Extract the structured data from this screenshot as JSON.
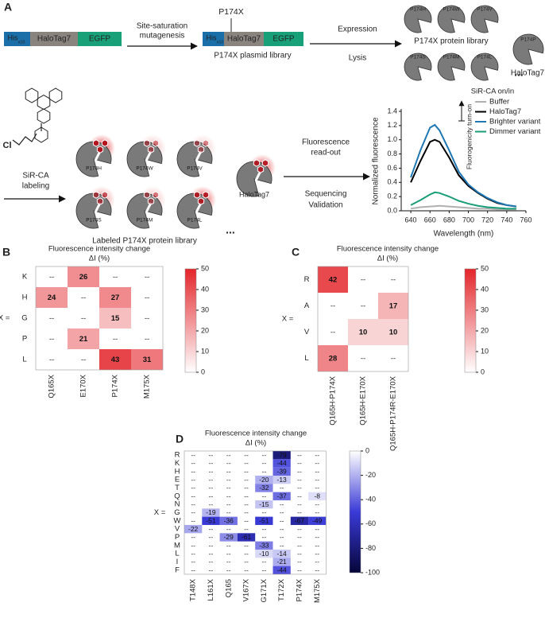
{
  "panel_a": {
    "label": "A",
    "construct": {
      "his": "His",
      "his_sub": "x10",
      "halotag": "HaloTag7",
      "egfp": "EGFP"
    },
    "step1": [
      "Site-saturation",
      "mutagenesis"
    ],
    "mutant_label": "P174X",
    "plasmid_library": "P174X plasmid library",
    "step2": [
      "Expression",
      "Lysis"
    ],
    "variants": [
      "P174H",
      "P174W",
      "P174V",
      "P174S",
      "P174M",
      "P174L"
    ],
    "ellipsis": "...",
    "protein_library": "P174X protein library",
    "wildtype_site": "P174P",
    "wildtype": "HaloTag7",
    "chlorine": "Cl",
    "step3": [
      "SiR-CA",
      "labeling"
    ],
    "labeled_library": "Labeled P174X protein library",
    "step4": [
      "Fluorescence",
      "read-out",
      "Sequencing",
      "Validation"
    ]
  },
  "chart_data": [
    {
      "type": "line",
      "xlabel": "Wavelength (nm)",
      "ylabel": "Normalized fluorescence",
      "legend_title": "SiR-CA on/in",
      "annotation": "Fluorogenicity turn-on",
      "x": [
        640,
        650,
        660,
        665,
        670,
        680,
        690,
        700,
        710,
        720,
        730,
        740,
        750
      ],
      "series": [
        {
          "name": "Buffer",
          "color": "#b0b0b0",
          "values": [
            0.03,
            0.05,
            0.06,
            0.065,
            0.07,
            0.06,
            0.05,
            0.04,
            0.03,
            0.03,
            0.02,
            0.02,
            0.02
          ]
        },
        {
          "name": "HaloTag7",
          "color": "#000000",
          "values": [
            0.4,
            0.7,
            0.97,
            1.0,
            0.97,
            0.75,
            0.5,
            0.35,
            0.25,
            0.17,
            0.11,
            0.08,
            0.06
          ]
        },
        {
          "name": "Brighter variant",
          "color": "#1f78b4",
          "values": [
            0.47,
            0.85,
            1.17,
            1.21,
            1.13,
            0.85,
            0.55,
            0.37,
            0.26,
            0.18,
            0.12,
            0.08,
            0.06
          ]
        },
        {
          "name": "Dimmer variant",
          "color": "#1a9e77",
          "values": [
            0.08,
            0.15,
            0.23,
            0.26,
            0.25,
            0.2,
            0.14,
            0.1,
            0.07,
            0.05,
            0.04,
            0.03,
            0.03
          ]
        }
      ],
      "xlim": [
        630,
        760
      ],
      "xticks": [
        640,
        660,
        680,
        700,
        720,
        740,
        760
      ],
      "ylim": [
        0,
        1.4
      ],
      "yticks": [
        {
          "value": 0,
          "label": "0.0"
        },
        0.2,
        0.4,
        0.6,
        0.8,
        {
          "value": 1,
          "label": "1.0"
        },
        1.2,
        1.4
      ]
    },
    {
      "type": "heatmap",
      "panel_label": "B",
      "title": "Fluorescence intensity change",
      "subtitle": "ΔI (%)",
      "row_axis_label": "X =",
      "empty_label": "--",
      "rows": [
        "K",
        "H",
        "G",
        "P",
        "L"
      ],
      "columns": [
        "Q165X",
        "E170X",
        "P174X",
        "M175X"
      ],
      "values": [
        [
          null,
          26,
          null,
          null
        ],
        [
          24,
          null,
          27,
          null
        ],
        [
          null,
          null,
          15,
          null
        ],
        [
          null,
          21,
          null,
          null
        ],
        [
          null,
          null,
          43,
          31
        ]
      ],
      "clim": [
        0,
        50
      ],
      "colorbar_ticks": [
        0,
        10,
        20,
        30,
        40,
        50
      ],
      "colors": [
        "#ffffff",
        "#e3262b"
      ]
    },
    {
      "type": "heatmap",
      "panel_label": "C",
      "title": "Fluorescence intensity change",
      "subtitle": "ΔI (%)",
      "row_axis_label": "X =",
      "empty_label": "--",
      "rows": [
        "R",
        "A",
        "V",
        "L"
      ],
      "columns": [
        "Q165H-P174X",
        "Q165H-E170X",
        "Q165H-P174R-E170X"
      ],
      "values": [
        [
          42,
          null,
          null
        ],
        [
          null,
          null,
          17
        ],
        [
          null,
          10,
          10
        ],
        [
          28,
          null,
          null
        ]
      ],
      "clim": [
        0,
        50
      ],
      "colorbar_ticks": [
        0,
        10,
        20,
        30,
        40,
        50
      ],
      "colors": [
        "#ffffff",
        "#e3262b"
      ]
    },
    {
      "type": "heatmap",
      "panel_label": "D",
      "title": "Fluorescence intensity change",
      "subtitle": "ΔI (%)",
      "row_axis_label": "X =",
      "empty_label": "--",
      "rows": [
        "R",
        "K",
        "H",
        "E",
        "T",
        "Q",
        "N",
        "G",
        "W",
        "V",
        "P",
        "M",
        "L",
        "I",
        "F"
      ],
      "columns": [
        "T148X",
        "L161X",
        "Q165",
        "V167X",
        "G171X",
        "T172X",
        "P174X",
        "M175X"
      ],
      "values": [
        [
          null,
          null,
          null,
          null,
          null,
          -79,
          null,
          null
        ],
        [
          null,
          null,
          null,
          null,
          null,
          -44,
          null,
          null
        ],
        [
          null,
          null,
          null,
          null,
          null,
          -39,
          null,
          null
        ],
        [
          null,
          null,
          null,
          null,
          -20,
          -13,
          null,
          null
        ],
        [
          null,
          null,
          null,
          null,
          -32,
          null,
          null,
          null
        ],
        [
          null,
          null,
          null,
          null,
          null,
          -37,
          null,
          -8
        ],
        [
          null,
          null,
          null,
          null,
          -15,
          null,
          null,
          null
        ],
        [
          null,
          -19,
          null,
          null,
          null,
          null,
          null,
          null
        ],
        [
          null,
          -51,
          -36,
          null,
          -51,
          null,
          -67,
          -49
        ],
        [
          -22,
          null,
          null,
          null,
          null,
          null,
          null,
          null
        ],
        [
          null,
          null,
          -29,
          -61,
          null,
          null,
          null,
          null
        ],
        [
          null,
          null,
          null,
          null,
          -33,
          null,
          null,
          null
        ],
        [
          null,
          null,
          null,
          null,
          -10,
          -14,
          null,
          null
        ],
        [
          null,
          null,
          null,
          null,
          null,
          -21,
          null,
          null
        ],
        [
          null,
          null,
          null,
          null,
          null,
          -44,
          null,
          null
        ]
      ],
      "clim": [
        -100,
        0
      ],
      "colorbar_ticks": [
        0,
        -20,
        -40,
        -60,
        -80,
        -100
      ],
      "colors": [
        "#05053a",
        "#3a3ad8",
        "#ffffff"
      ]
    }
  ]
}
